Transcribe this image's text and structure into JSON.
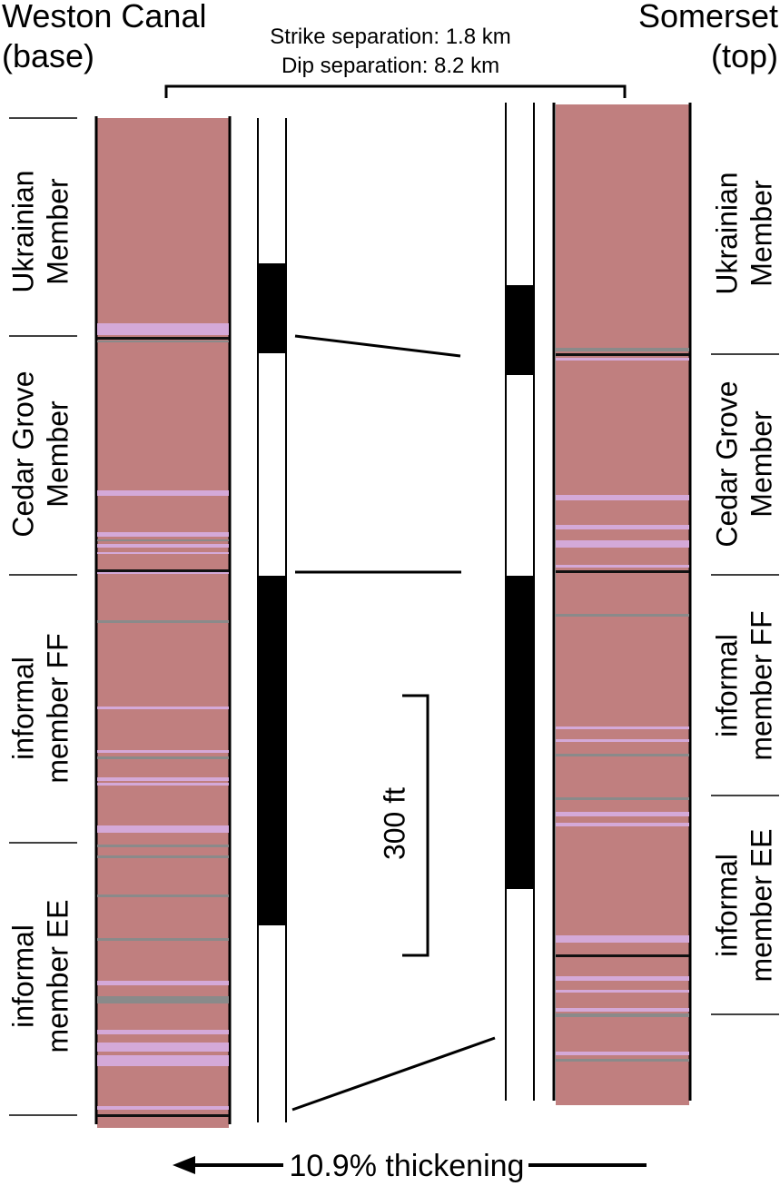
{
  "left_header": {
    "title": "Weston Canal",
    "subtitle": "(base)"
  },
  "right_header": {
    "title": "Somerset",
    "subtitle": "(top)"
  },
  "separation": {
    "strike": "Strike separation: 1.8 km",
    "dip": "Dip separation: 8.2 km"
  },
  "left_members": [
    [
      "Ukrainian",
      "Member"
    ],
    [
      "Cedar Grove",
      "Member"
    ],
    [
      "informal",
      "member FF"
    ],
    [
      "informal",
      "member EE"
    ]
  ],
  "right_members": [
    [
      "Ukrainian",
      "Member"
    ],
    [
      "Cedar Grove",
      "Member"
    ],
    [
      "informal",
      "member FF"
    ],
    [
      "informal",
      "member EE"
    ]
  ],
  "scale_label": "300 ft",
  "arrow_label": "10.9% thickening"
}
